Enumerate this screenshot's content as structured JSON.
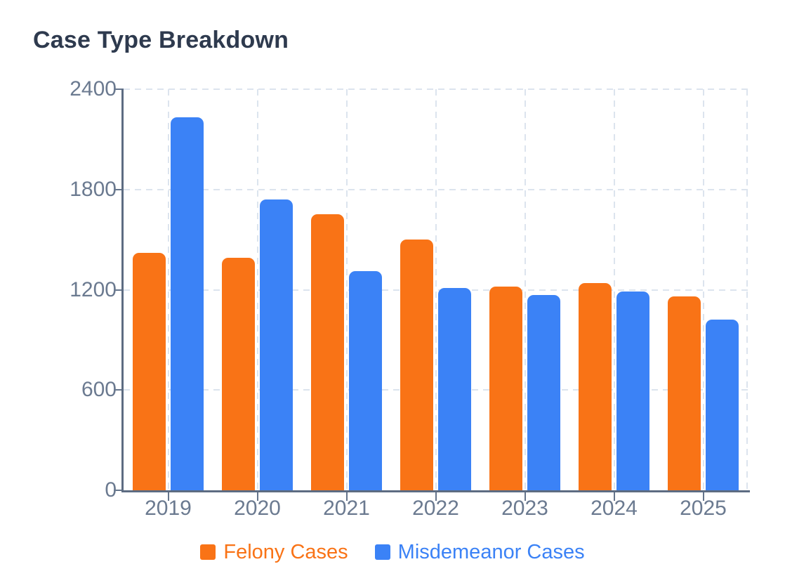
{
  "chart_data": {
    "type": "bar",
    "title": "Case Type Breakdown",
    "categories": [
      "2019",
      "2020",
      "2021",
      "2022",
      "2023",
      "2024",
      "2025"
    ],
    "series": [
      {
        "name": "Felony Cases",
        "color": "#F97316",
        "values": [
          1420,
          1390,
          1650,
          1500,
          1220,
          1240,
          1160
        ]
      },
      {
        "name": "Misdemeanor Cases",
        "color": "#3B82F6",
        "values": [
          2230,
          1740,
          1310,
          1210,
          1170,
          1190,
          1020
        ]
      }
    ],
    "xlabel": "",
    "ylabel": "",
    "ylim": [
      0,
      2400
    ],
    "yticks": [
      0,
      600,
      1200,
      1800,
      2400
    ],
    "grid": true,
    "grid_style": "dashed",
    "legend_position": "bottom",
    "style": {
      "title_color": "#2E3A4E",
      "tick_label_color": "#6B7A90",
      "axis_color": "#5D6C82",
      "tick_color": "#64748B",
      "grid_color": "#DCE4EE",
      "background": "#FFFFFF"
    }
  }
}
